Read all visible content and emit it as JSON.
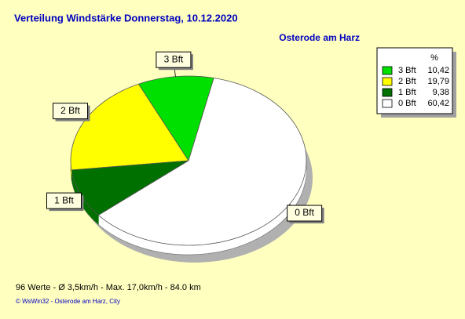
{
  "chart_data": {
    "type": "pie",
    "title": "Verteilung Windstärke  Donnerstag, 10.12.2020",
    "subtitle": "Osterode am Harz",
    "categories": [
      "3 Bft",
      "2 Bft",
      "1 Bft",
      "0 Bft"
    ],
    "values": [
      10.42,
      19.79,
      9.38,
      60.42
    ],
    "value_labels": [
      "10,42",
      "19,79",
      "9,38",
      "60,42"
    ],
    "colors": [
      "#00e000",
      "#ffff00",
      "#007000",
      "#ffffff"
    ],
    "legend_header": "%",
    "legend": "top-right",
    "footer": "96 Werte   -   Ø 3,5km/h  -  Max. 17,0km/h   -   84.0 km",
    "copyright": "© WsWin32  -  Osterode am Harz, City"
  }
}
